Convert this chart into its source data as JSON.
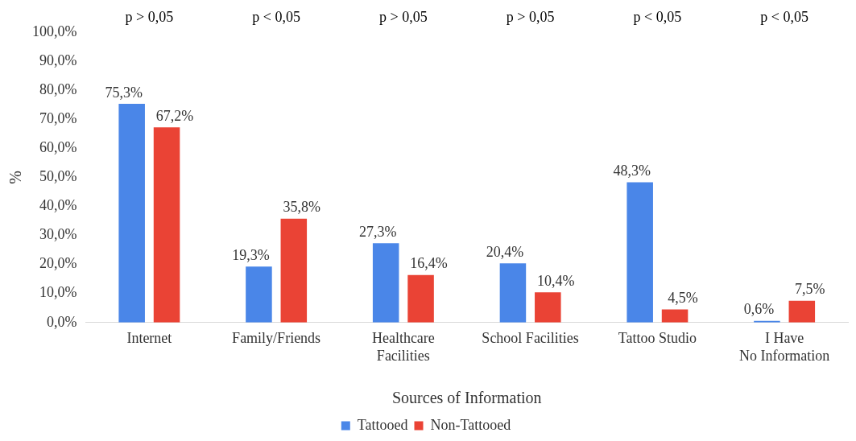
{
  "chart_data": {
    "type": "bar",
    "xlabel": "Sources of Information",
    "ylabel": "%",
    "categories": [
      "Internet",
      "Family/Friends",
      "Healthcare Facilities",
      "School Facilities",
      "Tattoo Studio",
      "I Have No Information"
    ],
    "series": [
      {
        "name": "Tattooed",
        "color": "#4a86e8",
        "values": [
          75.3,
          19.3,
          27.3,
          20.4,
          48.3,
          0.6
        ],
        "value_labels": [
          "75,3%",
          "19,3%",
          "27,3%",
          "20,4%",
          "48,3%",
          "0,6%"
        ]
      },
      {
        "name": "Non-Tattooed",
        "color": "#ea4335",
        "values": [
          67.2,
          35.8,
          16.4,
          10.4,
          4.5,
          7.5
        ],
        "value_labels": [
          "67,2%",
          "35,8%",
          "16,4%",
          "10,4%",
          "4,5%",
          "7,5%"
        ]
      }
    ],
    "ylim": [
      0,
      100
    ],
    "yticks": [
      {
        "value": 0,
        "label": "0,0%"
      },
      {
        "value": 10,
        "label": "10,0%"
      },
      {
        "value": 20,
        "label": "20,0%"
      },
      {
        "value": 30,
        "label": "30,0%"
      },
      {
        "value": 40,
        "label": "40,0%"
      },
      {
        "value": 50,
        "label": "50,0%"
      },
      {
        "value": 60,
        "label": "60,0%"
      },
      {
        "value": 70,
        "label": "70,0%"
      },
      {
        "value": 80,
        "label": "80,0%"
      },
      {
        "value": 90,
        "label": "90,0%"
      },
      {
        "value": 100,
        "label": "100,0%"
      }
    ],
    "annotations": [
      "p > 0,05",
      "p < 0,05",
      "p > 0,05",
      "p > 0,05",
      "p < 0,05",
      "p < 0,05"
    ],
    "grid": false,
    "legend": "bottom"
  }
}
